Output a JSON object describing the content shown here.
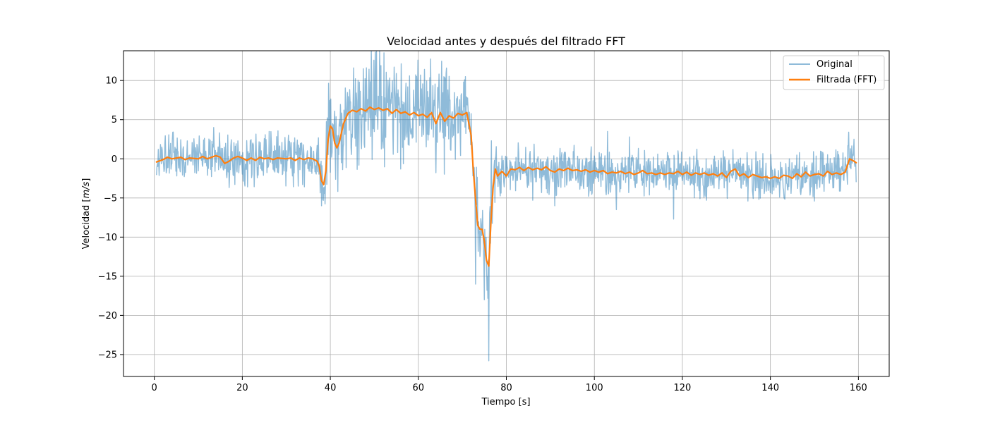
{
  "chart_data": {
    "type": "line",
    "title": "Velocidad antes y después del filtrado FFT",
    "xlabel": "Tiempo [s]",
    "ylabel_prefix": "Velocidad [",
    "ylabel_unit": "m/s",
    "ylabel_suffix": "]",
    "xlim": [
      -7,
      167
    ],
    "ylim": [
      -27.8,
      13.8
    ],
    "x_ticks": [
      0,
      20,
      40,
      60,
      80,
      100,
      120,
      140,
      160
    ],
    "y_ticks": [
      10,
      5,
      0,
      -5,
      -10,
      -15,
      -20,
      -25
    ],
    "y_tick_labels": [
      "10",
      "5",
      "0",
      "−5",
      "−10",
      "−15",
      "−20",
      "−25"
    ],
    "grid": true,
    "legend_position": "top-right",
    "colors": {
      "original": "#1f77b4",
      "filtered": "#ff7f0e"
    },
    "series": [
      {
        "name": "Original",
        "noise_band": [
          [
            1,
            2.5
          ],
          [
            37,
            2.6
          ],
          [
            38,
            3.2
          ],
          [
            40,
            5.5
          ],
          [
            48,
            5.5
          ],
          [
            70,
            5.0
          ],
          [
            72,
            3.5
          ],
          [
            73,
            4.0
          ],
          [
            76,
            4.5
          ],
          [
            77,
            3.2
          ],
          [
            80,
            2.4
          ],
          [
            158,
            2.2
          ],
          [
            159,
            2.8
          ]
        ],
        "spikes": [
          [
            13.5,
            4.0
          ],
          [
            11.2,
            2.4
          ],
          [
            29.0,
            2.1
          ],
          [
            38.0,
            -6.0
          ],
          [
            47.5,
            11.5
          ],
          [
            51.5,
            11.9
          ],
          [
            55.0,
            10.9
          ],
          [
            60.5,
            10.7
          ],
          [
            66.0,
            10.4
          ],
          [
            70.5,
            10.1
          ],
          [
            73.0,
            -16.0
          ],
          [
            75.0,
            -18.0
          ],
          [
            76.0,
            -25.8
          ],
          [
            76.6,
            2.3
          ],
          [
            86.0,
            -5.3
          ],
          [
            91.0,
            -6.0
          ],
          [
            103.0,
            3.5
          ],
          [
            105.0,
            -6.5
          ],
          [
            108.0,
            2.8
          ],
          [
            118.0,
            -7.7
          ],
          [
            125.5,
            -5.3
          ],
          [
            150.0,
            -5.4
          ],
          [
            157.8,
            3.4
          ],
          [
            159.0,
            2.5
          ]
        ]
      },
      {
        "name": "Filtrada (FFT)",
        "points": [
          [
            0.5,
            -0.4
          ],
          [
            2,
            -0.1
          ],
          [
            3,
            0.2
          ],
          [
            4,
            0.0
          ],
          [
            6,
            0.2
          ],
          [
            7,
            -0.1
          ],
          [
            8,
            0.1
          ],
          [
            10,
            0.0
          ],
          [
            11,
            0.3
          ],
          [
            12,
            0.0
          ],
          [
            14,
            0.4
          ],
          [
            15,
            0.2
          ],
          [
            16,
            -0.6
          ],
          [
            17,
            -0.3
          ],
          [
            18,
            0.1
          ],
          [
            19,
            0.3
          ],
          [
            20,
            0.1
          ],
          [
            21,
            -0.2
          ],
          [
            22,
            0.1
          ],
          [
            23,
            -0.2
          ],
          [
            24,
            0.2
          ],
          [
            25,
            0.0
          ],
          [
            26,
            0.1
          ],
          [
            27,
            -0.1
          ],
          [
            28,
            0.1
          ],
          [
            30,
            0.0
          ],
          [
            31,
            0.1
          ],
          [
            32,
            -0.2
          ],
          [
            33,
            0.1
          ],
          [
            34,
            -0.1
          ],
          [
            35,
            0.1
          ],
          [
            36,
            0.0
          ],
          [
            37,
            -0.3
          ],
          [
            37.5,
            -1.0
          ],
          [
            38,
            -2.8
          ],
          [
            38.5,
            -3.3
          ],
          [
            39,
            -1.5
          ],
          [
            39.5,
            2.5
          ],
          [
            40,
            4.2
          ],
          [
            40.5,
            3.8
          ],
          [
            41,
            2.0
          ],
          [
            41.5,
            1.4
          ],
          [
            42,
            2.0
          ],
          [
            43,
            4.5
          ],
          [
            44,
            5.8
          ],
          [
            45,
            6.2
          ],
          [
            46,
            6.0
          ],
          [
            47,
            6.4
          ],
          [
            48,
            6.1
          ],
          [
            49,
            6.6
          ],
          [
            50,
            6.3
          ],
          [
            51,
            6.5
          ],
          [
            52,
            6.2
          ],
          [
            53,
            6.4
          ],
          [
            54,
            5.8
          ],
          [
            55,
            6.3
          ],
          [
            56,
            5.8
          ],
          [
            57,
            6.0
          ],
          [
            58,
            5.6
          ],
          [
            59,
            5.9
          ],
          [
            60,
            5.5
          ],
          [
            61,
            5.7
          ],
          [
            62,
            5.3
          ],
          [
            63,
            5.9
          ],
          [
            64,
            4.5
          ],
          [
            65,
            5.9
          ],
          [
            66,
            4.8
          ],
          [
            67,
            5.5
          ],
          [
            68,
            5.2
          ],
          [
            69,
            5.8
          ],
          [
            70,
            5.6
          ],
          [
            71,
            5.9
          ],
          [
            72,
            3.0
          ],
          [
            72.5,
            -1.5
          ],
          [
            73,
            -5.2
          ],
          [
            73.5,
            -8.5
          ],
          [
            74,
            -9.0
          ],
          [
            74.5,
            -9.0
          ],
          [
            75,
            -10.5
          ],
          [
            75.5,
            -13.0
          ],
          [
            76,
            -13.7
          ],
          [
            76.5,
            -8.0
          ],
          [
            77,
            -3.5
          ],
          [
            77.5,
            -1.3
          ],
          [
            78,
            -2.2
          ],
          [
            79,
            -1.6
          ],
          [
            80,
            -2.2
          ],
          [
            81,
            -1.3
          ],
          [
            82,
            -1.4
          ],
          [
            83,
            -1.1
          ],
          [
            84,
            -1.5
          ],
          [
            85,
            -1.1
          ],
          [
            86,
            -1.4
          ],
          [
            87,
            -1.2
          ],
          [
            88,
            -1.4
          ],
          [
            89,
            -1.0
          ],
          [
            90,
            -1.5
          ],
          [
            91,
            -1.7
          ],
          [
            92,
            -1.3
          ],
          [
            93,
            -1.5
          ],
          [
            94,
            -1.2
          ],
          [
            95,
            -1.5
          ],
          [
            96,
            -1.4
          ],
          [
            97,
            -1.6
          ],
          [
            98,
            -1.4
          ],
          [
            99,
            -1.7
          ],
          [
            100,
            -1.5
          ],
          [
            101,
            -1.7
          ],
          [
            102,
            -1.5
          ],
          [
            103,
            -1.9
          ],
          [
            104,
            -1.7
          ],
          [
            105,
            -1.8
          ],
          [
            106,
            -1.6
          ],
          [
            107,
            -1.9
          ],
          [
            108,
            -1.7
          ],
          [
            109,
            -2.0
          ],
          [
            110,
            -1.8
          ],
          [
            111,
            -1.5
          ],
          [
            112,
            -1.9
          ],
          [
            113,
            -1.8
          ],
          [
            114,
            -2.0
          ],
          [
            115,
            -1.8
          ],
          [
            116,
            -2.0
          ],
          [
            117,
            -1.8
          ],
          [
            118,
            -1.9
          ],
          [
            119,
            -1.6
          ],
          [
            120,
            -2.0
          ],
          [
            121,
            -1.7
          ],
          [
            122,
            -2.1
          ],
          [
            123,
            -1.8
          ],
          [
            124,
            -2.0
          ],
          [
            125,
            -1.8
          ],
          [
            126,
            -2.1
          ],
          [
            127,
            -1.9
          ],
          [
            128,
            -2.2
          ],
          [
            129,
            -1.8
          ],
          [
            130,
            -2.4
          ],
          [
            131,
            -1.6
          ],
          [
            132,
            -1.3
          ],
          [
            133,
            -2.2
          ],
          [
            134,
            -1.9
          ],
          [
            135,
            -2.4
          ],
          [
            136,
            -2.0
          ],
          [
            137,
            -2.2
          ],
          [
            138,
            -2.4
          ],
          [
            139,
            -2.3
          ],
          [
            140,
            -2.5
          ],
          [
            141,
            -2.3
          ],
          [
            142,
            -2.5
          ],
          [
            143,
            -2.1
          ],
          [
            144,
            -2.2
          ],
          [
            145,
            -2.5
          ],
          [
            146,
            -1.9
          ],
          [
            147,
            -2.3
          ],
          [
            148,
            -1.7
          ],
          [
            149,
            -2.2
          ],
          [
            150,
            -2.0
          ],
          [
            151,
            -1.9
          ],
          [
            152,
            -2.2
          ],
          [
            153,
            -1.6
          ],
          [
            154,
            -2.0
          ],
          [
            155,
            -1.8
          ],
          [
            156,
            -2.0
          ],
          [
            157,
            -1.7
          ],
          [
            158,
            0.0
          ],
          [
            159,
            -0.3
          ],
          [
            159.5,
            -0.5
          ]
        ]
      }
    ]
  }
}
